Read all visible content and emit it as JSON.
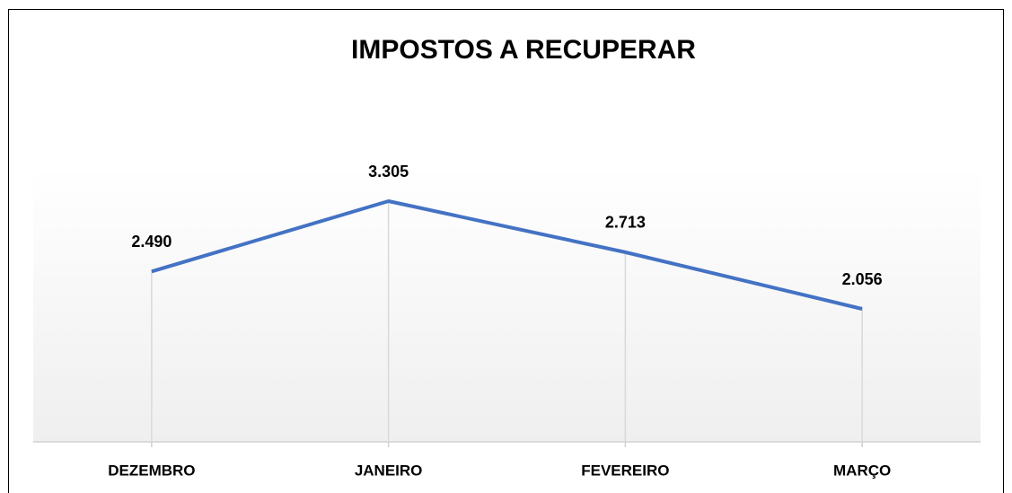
{
  "chart_data": {
    "type": "line",
    "title": "IMPOSTOS A RECUPERAR",
    "categories": [
      "DEZEMBRO",
      "JANEIRO",
      "FEVEREIRO",
      "MARÇO"
    ],
    "values": [
      2490,
      3305,
      2713,
      2056
    ],
    "value_labels": [
      "2.490",
      "3.305",
      "2.713",
      "2.056"
    ],
    "color": "#4472c4"
  }
}
